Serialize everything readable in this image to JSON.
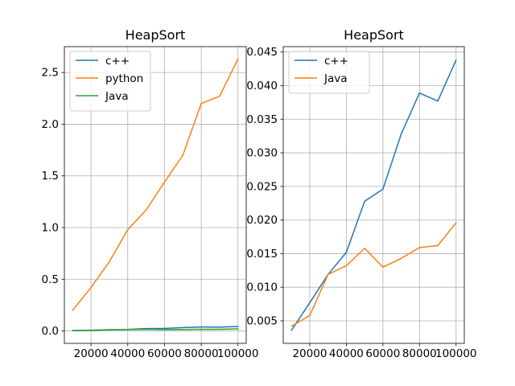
{
  "chart_data": [
    {
      "type": "line",
      "title": "HeapSort",
      "xlabel": "",
      "ylabel": "",
      "xlim": [
        5500,
        104500
      ],
      "ylim": [
        -0.12,
        2.75
      ],
      "grid": true,
      "legend": "upper-left",
      "xticks": [
        20000,
        40000,
        60000,
        80000,
        100000
      ],
      "xtick_labels": [
        "20000",
        "40000",
        "60000",
        "80000",
        "100000"
      ],
      "yticks": [
        0,
        0.5,
        1,
        1.5,
        2,
        2.5
      ],
      "ytick_labels": [
        "0.0",
        "0.5",
        "1.0",
        "1.5",
        "2.0",
        "2.5"
      ],
      "x": [
        10000,
        20000,
        30000,
        40000,
        50000,
        60000,
        70000,
        80000,
        90000,
        100000
      ],
      "series": [
        {
          "name": "c++",
          "color": "#1f77b4",
          "values": [
            0.0036,
            0.0077,
            0.0119,
            0.0152,
            0.0228,
            0.0246,
            0.0328,
            0.0389,
            0.0377,
            0.0438
          ]
        },
        {
          "name": "python",
          "color": "#ff7f0e",
          "values": [
            0.2,
            0.42,
            0.67,
            0.98,
            1.17,
            1.44,
            1.7,
            2.2,
            2.27,
            2.63
          ]
        },
        {
          "name": "Java",
          "color": "#2ca02c",
          "values": [
            0.0042,
            0.0058,
            0.0119,
            0.0132,
            0.0158,
            0.013,
            0.0143,
            0.0159,
            0.0162,
            0.0196
          ]
        }
      ]
    },
    {
      "type": "line",
      "title": "HeapSort",
      "xlabel": "",
      "ylabel": "",
      "xlim": [
        5500,
        104500
      ],
      "ylim": [
        0.00165,
        0.0458
      ],
      "grid": true,
      "legend": "upper-left",
      "xticks": [
        20000,
        40000,
        60000,
        80000,
        100000
      ],
      "xtick_labels": [
        "20000",
        "40000",
        "60000",
        "80000",
        "100000"
      ],
      "yticks": [
        0.005,
        0.01,
        0.015,
        0.02,
        0.025,
        0.03,
        0.035,
        0.04,
        0.045
      ],
      "ytick_labels": [
        "0.005",
        "0.010",
        "0.015",
        "0.020",
        "0.025",
        "0.030",
        "0.035",
        "0.040",
        "0.045"
      ],
      "x": [
        10000,
        20000,
        30000,
        40000,
        50000,
        60000,
        70000,
        80000,
        90000,
        100000
      ],
      "series": [
        {
          "name": "c++",
          "color": "#1f77b4",
          "values": [
            0.0036,
            0.0077,
            0.0119,
            0.0152,
            0.0228,
            0.0246,
            0.0328,
            0.0389,
            0.0377,
            0.0438
          ]
        },
        {
          "name": "Java",
          "color": "#ff7f0e",
          "values": [
            0.0042,
            0.0058,
            0.0119,
            0.0132,
            0.0158,
            0.013,
            0.0143,
            0.0159,
            0.0162,
            0.0196
          ]
        }
      ]
    }
  ]
}
